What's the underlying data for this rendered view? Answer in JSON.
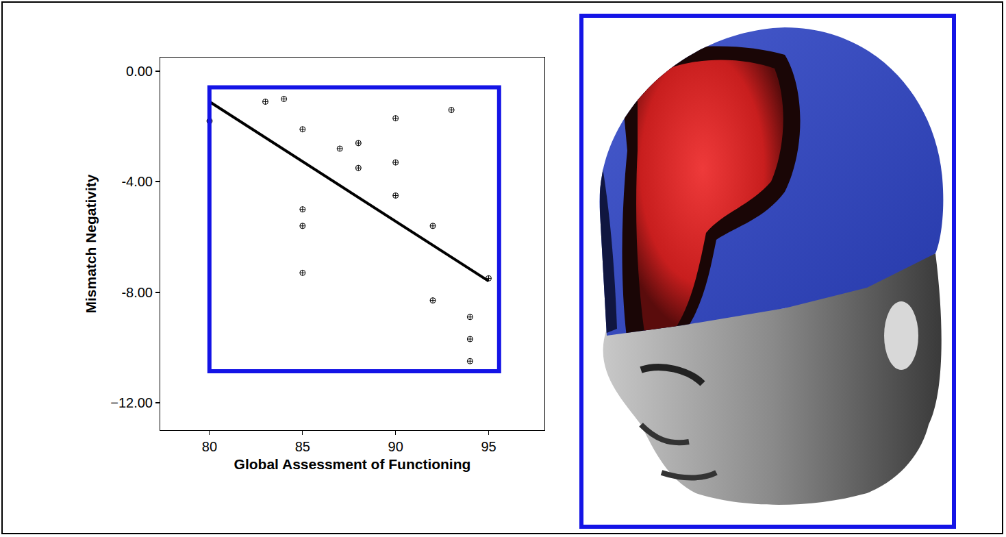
{
  "chart_data": {
    "type": "scatter",
    "x_label": "Global Assessment of Functioning",
    "y_label": "Mismatch Negativity",
    "xlim": [
      77.35,
      98
    ],
    "xticks": [
      80,
      85,
      90,
      95
    ],
    "ylim": [
      -13,
      0.5
    ],
    "yticks": [
      {
        "value": 0,
        "label": "0.00"
      },
      {
        "value": -4,
        "label": "-4.00"
      },
      {
        "value": -8,
        "label": "-8.00"
      },
      {
        "value": -12,
        "label": "−12.00"
      }
    ],
    "grid": false,
    "series": [
      {
        "type": "scatter",
        "marker": "circle-cross-open",
        "color": "#000000",
        "x": [
          80,
          83,
          84,
          85,
          85,
          85,
          85,
          87,
          88,
          88,
          90,
          90,
          90,
          92,
          92,
          93,
          94,
          94,
          94,
          95
        ],
        "values": [
          -1.8,
          -1.1,
          -1.0,
          -2.1,
          -5.0,
          -5.6,
          -7.3,
          -2.8,
          -2.6,
          -3.5,
          -1.7,
          -3.3,
          -4.5,
          -5.6,
          -8.3,
          -1.4,
          -8.9,
          -9.7,
          -10.5,
          -7.5
        ]
      },
      {
        "type": "line",
        "line_style": "solid",
        "color": "#000000",
        "x": [
          80,
          95
        ],
        "values": [
          -1.1,
          -7.6
        ]
      }
    ]
  }
}
